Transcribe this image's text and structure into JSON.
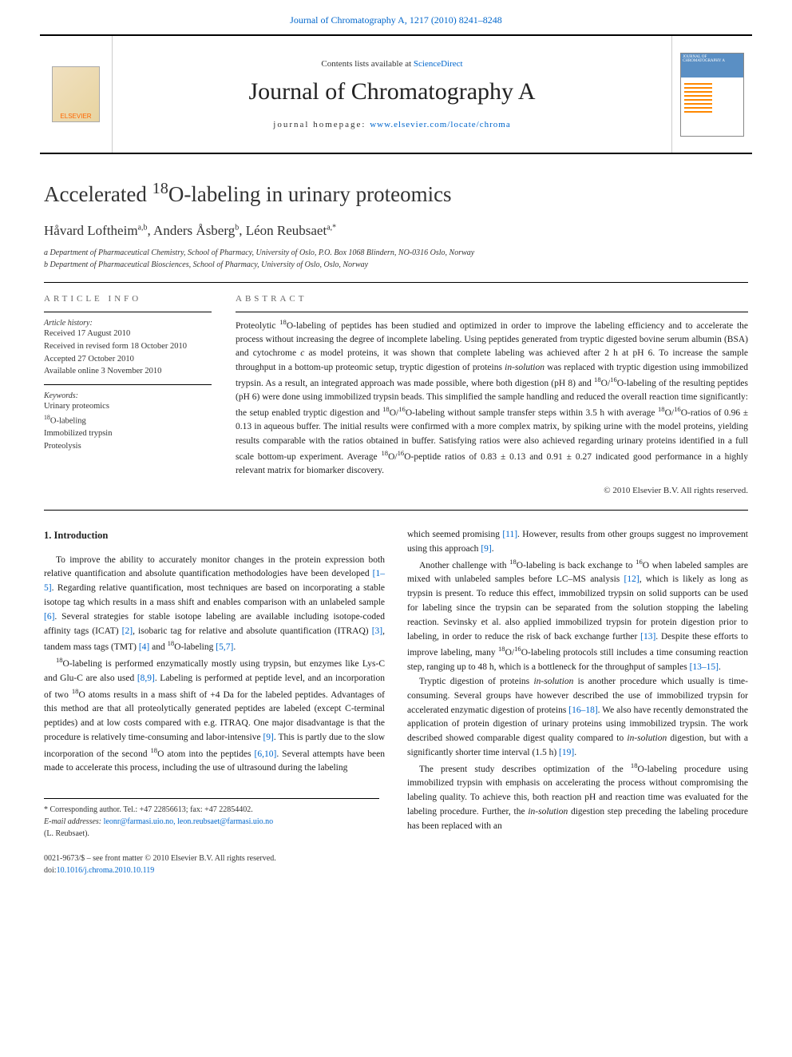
{
  "top_citation": "Journal of Chromatography A, 1217 (2010) 8241–8248",
  "header": {
    "contents_prefix": "Contents lists available at ",
    "contents_link": "ScienceDirect",
    "journal_name": "Journal of Chromatography A",
    "homepage_prefix": "journal homepage: ",
    "homepage_url": "www.elsevier.com/locate/chroma",
    "publisher_name": "ELSEVIER",
    "cover_label": "JOURNAL OF CHROMATOGRAPHY A"
  },
  "article": {
    "title_html": "Accelerated <sup>18</sup>O-labeling in urinary proteomics",
    "authors_html": "Håvard Loftheim<sup>a,b</sup>, Anders Åsberg<sup>b</sup>, Léon Reubsaet<sup>a,*</sup>",
    "affiliations": [
      "a Department of Pharmaceutical Chemistry, School of Pharmacy, University of Oslo, P.O. Box 1068 Blindern, NO-0316 Oslo, Norway",
      "b Department of Pharmaceutical Biosciences, School of Pharmacy, University of Oslo, Oslo, Norway"
    ]
  },
  "info": {
    "heading": "ARTICLE INFO",
    "history_label": "Article history:",
    "history": [
      "Received 17 August 2010",
      "Received in revised form 18 October 2010",
      "Accepted 27 October 2010",
      "Available online 3 November 2010"
    ],
    "keywords_label": "Keywords:",
    "keywords": [
      "Urinary proteomics",
      "18O-labeling",
      "Immobilized trypsin",
      "Proteolysis"
    ]
  },
  "abstract": {
    "heading": "ABSTRACT",
    "text_html": "Proteolytic <sup>18</sup>O-labeling of peptides has been studied and optimized in order to improve the labeling efficiency and to accelerate the process without increasing the degree of incomplete labeling. Using peptides generated from tryptic digested bovine serum albumin (BSA) and cytochrome <i>c</i> as model proteins, it was shown that complete labeling was achieved after 2 h at pH 6. To increase the sample throughput in a bottom-up proteomic setup, tryptic digestion of proteins <i>in-solution</i> was replaced with tryptic digestion using immobilized trypsin. As a result, an integrated approach was made possible, where both digestion (pH 8) and <sup>18</sup>O/<sup>16</sup>O-labeling of the resulting peptides (pH 6) were done using immobilized trypsin beads. This simplified the sample handling and reduced the overall reaction time significantly: the setup enabled tryptic digestion and <sup>18</sup>O/<sup>16</sup>O-labeling without sample transfer steps within 3.5 h with average <sup>18</sup>O/<sup>16</sup>O-ratios of 0.96 ± 0.13 in aqueous buffer. The initial results were confirmed with a more complex matrix, by spiking urine with the model proteins, yielding results comparable with the ratios obtained in buffer. Satisfying ratios were also achieved regarding urinary proteins identified in a full scale bottom-up experiment. Average <sup>18</sup>O/<sup>16</sup>O-peptide ratios of 0.83 ± 0.13 and 0.91 ± 0.27 indicated good performance in a highly relevant matrix for biomarker discovery.",
    "copyright": "© 2010 Elsevier B.V. All rights reserved."
  },
  "intro": {
    "heading": "1. Introduction",
    "col1": {
      "p1_html": "To improve the ability to accurately monitor changes in the protein expression both relative quantification and absolute quantification methodologies have been developed <span class=\"ref-link\">[1–5]</span>. Regarding relative quantification, most techniques are based on incorporating a stable isotope tag which results in a mass shift and enables comparison with an unlabeled sample <span class=\"ref-link\">[6]</span>. Several strategies for stable isotope labeling are available including isotope-coded affinity tags (ICAT) <span class=\"ref-link\">[2]</span>, isobaric tag for relative and absolute quantification (ITRAQ) <span class=\"ref-link\">[3]</span>, tandem mass tags (TMT) <span class=\"ref-link\">[4]</span> and <sup>18</sup>O-labeling <span class=\"ref-link\">[5,7]</span>.",
      "p2_html": "<sup>18</sup>O-labeling is performed enzymatically mostly using trypsin, but enzymes like Lys-C and Glu-C are also used <span class=\"ref-link\">[8,9]</span>. Labeling is performed at peptide level, and an incorporation of two <sup>18</sup>O atoms results in a mass shift of +4 Da for the labeled peptides. Advantages of this method are that all proteolytically generated peptides are labeled (except C-terminal peptides) and at low costs compared with e.g. ITRAQ. One major disadvantage is that the procedure is relatively time-consuming and labor-intensive <span class=\"ref-link\">[9]</span>. This is partly due to the slow incorporation of the second <sup>18</sup>O atom into the peptides <span class=\"ref-link\">[6,10]</span>. Several attempts have been made to accelerate this process, including the use of ultrasound during the labeling"
    },
    "col2": {
      "p1_html": "which seemed promising <span class=\"ref-link\">[11]</span>. However, results from other groups suggest no improvement using this approach <span class=\"ref-link\">[9]</span>.",
      "p2_html": "Another challenge with <sup>18</sup>O-labeling is back exchange to <sup>16</sup>O when labeled samples are mixed with unlabeled samples before LC–MS analysis <span class=\"ref-link\">[12]</span>, which is likely as long as trypsin is present. To reduce this effect, immobilized trypsin on solid supports can be used for labeling since the trypsin can be separated from the solution stopping the labeling reaction. Sevinsky et al. also applied immobilized trypsin for protein digestion prior to labeling, in order to reduce the risk of back exchange further <span class=\"ref-link\">[13]</span>. Despite these efforts to improve labeling, many <sup>18</sup>O/<sup>16</sup>O-labeling protocols still includes a time consuming reaction step, ranging up to 48 h, which is a bottleneck for the throughput of samples <span class=\"ref-link\">[13–15]</span>.",
      "p3_html": "Tryptic digestion of proteins <i>in-solution</i> is another procedure which usually is time-consuming. Several groups have however described the use of immobilized trypsin for accelerated enzymatic digestion of proteins <span class=\"ref-link\">[16–18]</span>. We also have recently demonstrated the application of protein digestion of urinary proteins using immobilized trypsin. The work described showed comparable digest quality compared to <i>in-solution</i> digestion, but with a significantly shorter time interval (1.5 h) <span class=\"ref-link\">[19]</span>.",
      "p4_html": "The present study describes optimization of the <sup>18</sup>O-labeling procedure using immobilized trypsin with emphasis on accelerating the process without compromising the labeling quality. To achieve this, both reaction pH and reaction time was evaluated for the labeling procedure. Further, the <i>in-solution</i> digestion step preceding the labeling procedure has been replaced with an"
    }
  },
  "footer": {
    "corresponding": "* Corresponding author. Tel.: +47 22856613; fax: +47 22854402.",
    "email_label": "E-mail addresses:",
    "emails": "leonr@farmasi.uio.no, leon.reubsaet@farmasi.uio.no",
    "email_name": "(L. Reubsaet).",
    "issn_line": "0021-9673/$ – see front matter © 2010 Elsevier B.V. All rights reserved.",
    "doi_line": "doi:10.1016/j.chroma.2010.10.119"
  },
  "colors": {
    "link": "#0066cc",
    "text": "#1a1a1a",
    "heading_gray": "#666666",
    "background": "#ffffff"
  }
}
